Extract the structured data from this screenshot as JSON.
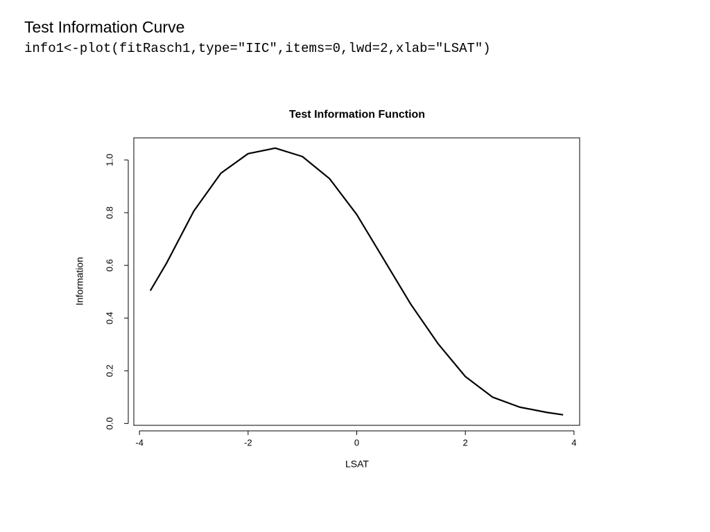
{
  "slide": {
    "title": "Test Information Curve",
    "code": "info1<-plot(fitRasch1,type=\"IIC\",items=0,lwd=2,xlab=\"LSAT\")"
  },
  "chart_data": {
    "type": "line",
    "title": "Test Information Function",
    "x_label": "LSAT",
    "y_label": "Information",
    "x": [
      -3.8,
      -3.5,
      -3,
      -2.5,
      -2,
      -1.5,
      -1,
      -0.5,
      0,
      0.5,
      1,
      1.5,
      2,
      2.5,
      3,
      3.5,
      3.8
    ],
    "values": [
      0.504,
      0.609,
      0.806,
      0.95,
      1.024,
      1.045,
      1.013,
      0.929,
      0.793,
      0.622,
      0.451,
      0.302,
      0.178,
      0.1,
      0.062,
      0.042,
      0.033
    ],
    "color": "#000000",
    "xlim": [
      -4.104,
      4.104
    ],
    "ylim": [
      -0.007,
      1.084
    ],
    "xticks": [
      -4,
      -2,
      0,
      2,
      4
    ],
    "yticks": [
      {
        "value": 0,
        "label": "0.0"
      },
      0.2,
      0.4,
      0.6,
      0.8,
      {
        "value": 1,
        "label": "1.0"
      }
    ],
    "grid": false
  }
}
